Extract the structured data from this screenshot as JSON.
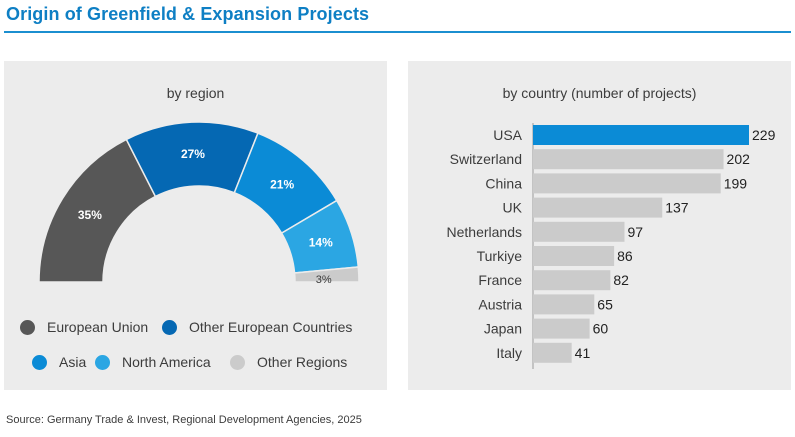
{
  "title": "Origin of Greenfield & Expansion Projects",
  "source": "Source: Germany Trade & Invest, Regional Development Agencies, 2025",
  "colors": {
    "european_union": "#575757",
    "other_european": "#0568b3",
    "asia": "#0b8bd6",
    "north_america": "#2ba6e3",
    "other_regions": "#cbcbcb",
    "bar_highlight": "#0b8bd6",
    "bar_default": "#cbcbcb"
  },
  "chart_data": [
    {
      "type": "pie",
      "subtitle": "by region",
      "style": "semi-donut",
      "slices": [
        {
          "name": "European Union",
          "value": 35,
          "label": "35%",
          "color_key": "european_union"
        },
        {
          "name": "Other European Countries",
          "value": 27,
          "label": "27%",
          "color_key": "other_european"
        },
        {
          "name": "Asia",
          "value": 21,
          "label": "21%",
          "color_key": "asia"
        },
        {
          "name": "North America",
          "value": 14,
          "label": "14%",
          "color_key": "north_america"
        },
        {
          "name": "Other Regions",
          "value": 3,
          "label": "3%",
          "color_key": "other_regions"
        }
      ],
      "legend_position": "bottom"
    },
    {
      "type": "bar",
      "orientation": "horizontal",
      "subtitle": "by country (number of projects)",
      "categories": [
        "USA",
        "Switzerland",
        "China",
        "UK",
        "Netherlands",
        "Turkiye",
        "France",
        "Austria",
        "Japan",
        "Italy"
      ],
      "values": [
        229,
        202,
        199,
        137,
        97,
        86,
        82,
        65,
        60,
        41
      ],
      "highlight_index": 0,
      "xlim": [
        0,
        229
      ]
    }
  ]
}
